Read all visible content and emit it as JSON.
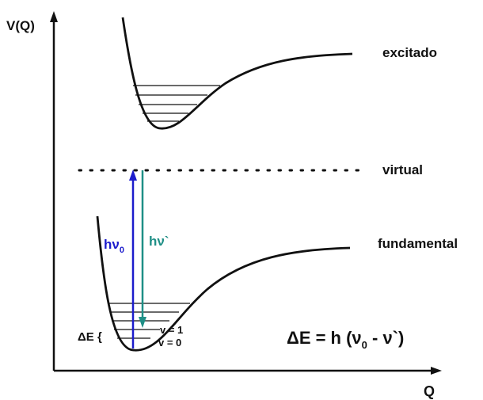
{
  "axes": {
    "y_label": "V(Q)",
    "x_label": "Q"
  },
  "states": {
    "excited": "excitado",
    "virtual": "virtual",
    "ground": "fundamental"
  },
  "transitions": {
    "incident": {
      "label": "hν",
      "subscript": "0",
      "color": "#1c1ccc"
    },
    "scattered": {
      "label": "hν`",
      "color": "#1f8f86"
    }
  },
  "levels": {
    "v1": "v = 1",
    "v0": "v = 0",
    "delta_e": "ΔE {"
  },
  "equation": {
    "lhs": "ΔE = h (ν",
    "sub": "0",
    "rhs": " - ν`)"
  }
}
